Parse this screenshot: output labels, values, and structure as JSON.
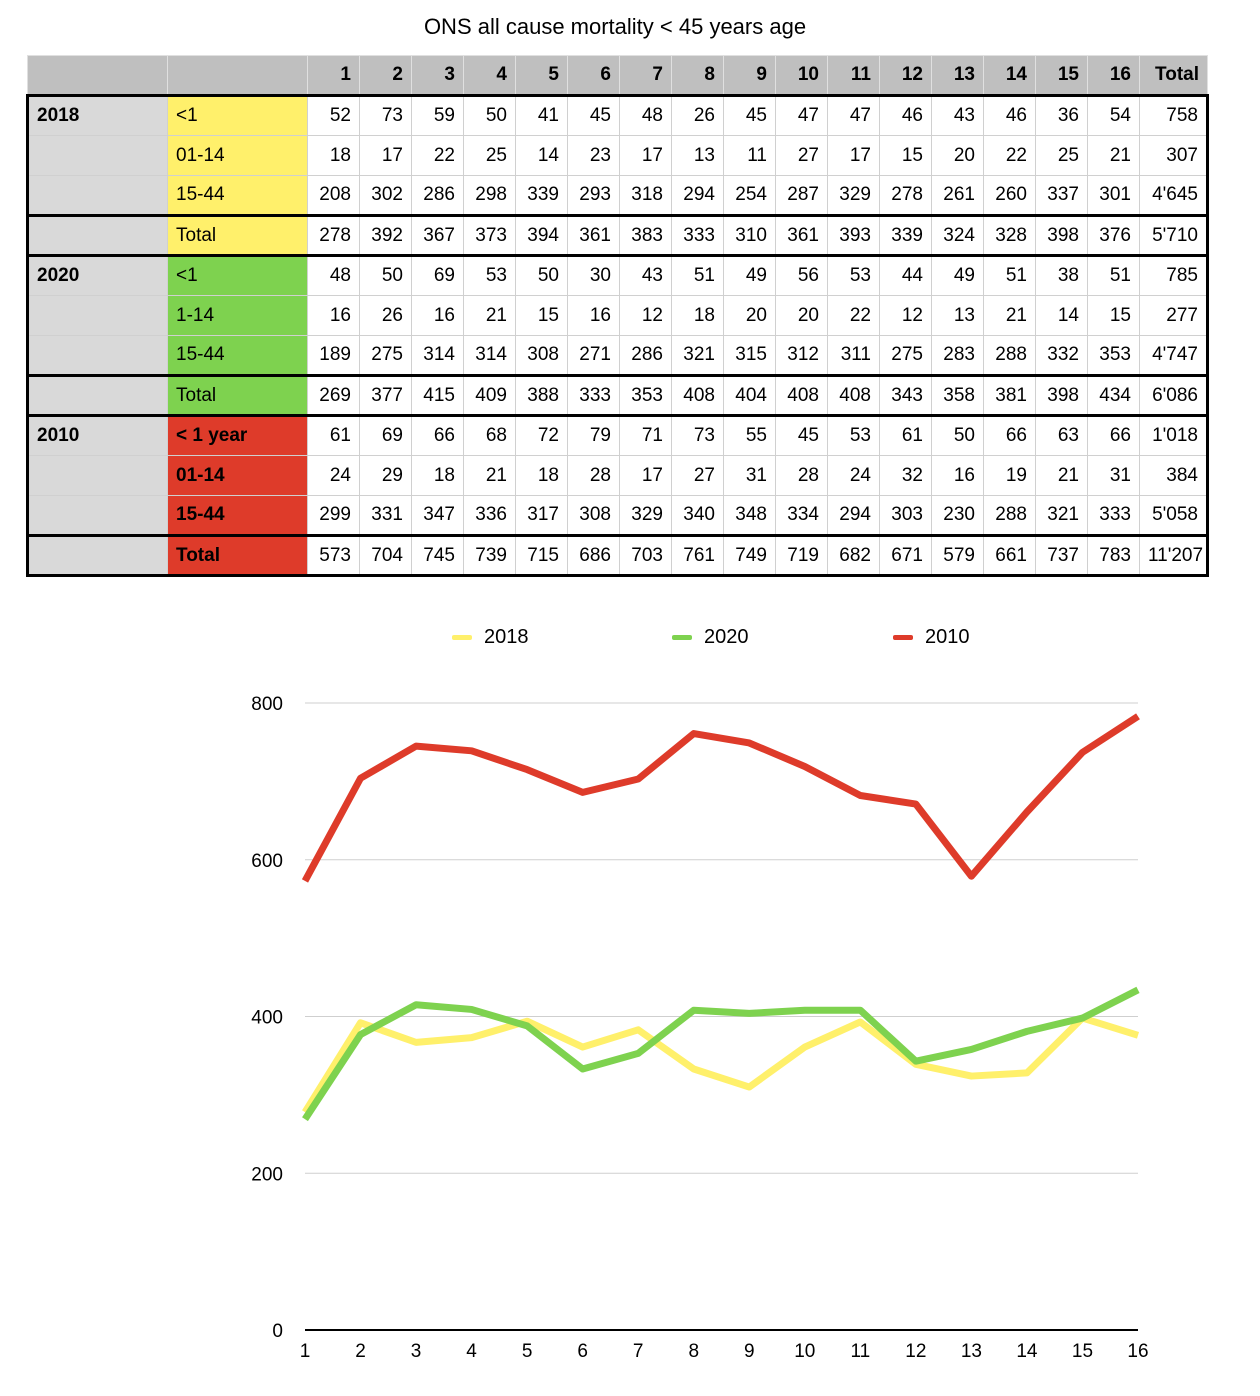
{
  "title": "ONS all cause mortality < 45 years age",
  "colors": {
    "y2018": "#fff06b",
    "y2020": "#7ed24f",
    "y2010": "#de3b2a"
  },
  "table": {
    "header": [
      "",
      "",
      "1",
      "2",
      "3",
      "4",
      "5",
      "6",
      "7",
      "8",
      "9",
      "10",
      "11",
      "12",
      "13",
      "14",
      "15",
      "16",
      "Total"
    ],
    "groups": [
      {
        "year": "2018",
        "color_key": "y18",
        "rows": [
          {
            "label": "<1",
            "values": [
              "52",
              "73",
              "59",
              "50",
              "41",
              "45",
              "48",
              "26",
              "45",
              "47",
              "47",
              "46",
              "43",
              "46",
              "36",
              "54",
              "758"
            ]
          },
          {
            "label": "01-14",
            "values": [
              "18",
              "17",
              "22",
              "25",
              "14",
              "23",
              "17",
              "13",
              "11",
              "27",
              "17",
              "15",
              "20",
              "22",
              "25",
              "21",
              "307"
            ]
          },
          {
            "label": "15-44",
            "values": [
              "208",
              "302",
              "286",
              "298",
              "339",
              "293",
              "318",
              "294",
              "254",
              "287",
              "329",
              "278",
              "261",
              "260",
              "337",
              "301",
              "4'645"
            ]
          }
        ],
        "total": {
          "label": "Total",
          "values": [
            "278",
            "392",
            "367",
            "373",
            "394",
            "361",
            "383",
            "333",
            "310",
            "361",
            "393",
            "339",
            "324",
            "328",
            "398",
            "376",
            "5'710"
          ]
        }
      },
      {
        "year": "2020",
        "color_key": "y20",
        "rows": [
          {
            "label": "<1",
            "values": [
              "48",
              "50",
              "69",
              "53",
              "50",
              "30",
              "43",
              "51",
              "49",
              "56",
              "53",
              "44",
              "49",
              "51",
              "38",
              "51",
              "785"
            ]
          },
          {
            "label": "1-14",
            "values": [
              "16",
              "26",
              "16",
              "21",
              "15",
              "16",
              "12",
              "18",
              "20",
              "20",
              "22",
              "12",
              "13",
              "21",
              "14",
              "15",
              "277"
            ]
          },
          {
            "label": "15-44",
            "values": [
              "189",
              "275",
              "314",
              "314",
              "308",
              "271",
              "286",
              "321",
              "315",
              "312",
              "311",
              "275",
              "283",
              "288",
              "332",
              "353",
              "4'747"
            ]
          }
        ],
        "total": {
          "label": "Total",
          "values": [
            "269",
            "377",
            "415",
            "409",
            "388",
            "333",
            "353",
            "408",
            "404",
            "408",
            "408",
            "343",
            "358",
            "381",
            "398",
            "434",
            "6'086"
          ]
        }
      },
      {
        "year": "2010",
        "color_key": "y10",
        "rows": [
          {
            "label": "< 1 year",
            "values": [
              "61",
              "69",
              "66",
              "68",
              "72",
              "79",
              "71",
              "73",
              "55",
              "45",
              "53",
              "61",
              "50",
              "66",
              "63",
              "66",
              "1'018"
            ]
          },
          {
            "label": "01-14",
            "values": [
              "24",
              "29",
              "18",
              "21",
              "18",
              "28",
              "17",
              "27",
              "31",
              "28",
              "24",
              "32",
              "16",
              "19",
              "21",
              "31",
              "384"
            ]
          },
          {
            "label": "15-44",
            "values": [
              "299",
              "331",
              "347",
              "336",
              "317",
              "308",
              "329",
              "340",
              "348",
              "334",
              "294",
              "303",
              "230",
              "288",
              "321",
              "333",
              "5'058"
            ]
          }
        ],
        "total": {
          "label": "Total",
          "values": [
            "573",
            "704",
            "745",
            "739",
            "715",
            "686",
            "703",
            "761",
            "749",
            "719",
            "682",
            "671",
            "579",
            "661",
            "737",
            "783",
            "11'207"
          ]
        }
      }
    ]
  },
  "chart_data": {
    "type": "line",
    "title": "",
    "xlabel": "",
    "ylabel": "",
    "x": [
      1,
      2,
      3,
      4,
      5,
      6,
      7,
      8,
      9,
      10,
      11,
      12,
      13,
      14,
      15,
      16
    ],
    "ylim": [
      0,
      800
    ],
    "yticks": [
      0,
      200,
      400,
      600,
      800
    ],
    "grid": true,
    "legend": "top",
    "series": [
      {
        "name": "2018",
        "color": "#fff06b",
        "values": [
          278,
          392,
          367,
          373,
          394,
          361,
          383,
          333,
          310,
          361,
          393,
          339,
          324,
          328,
          398,
          376
        ]
      },
      {
        "name": "2020",
        "color": "#7ed24f",
        "values": [
          269,
          377,
          415,
          409,
          388,
          333,
          353,
          408,
          404,
          408,
          408,
          343,
          358,
          381,
          398,
          434
        ]
      },
      {
        "name": "2010",
        "color": "#de3b2a",
        "values": [
          573,
          704,
          745,
          739,
          715,
          686,
          703,
          761,
          749,
          719,
          682,
          671,
          579,
          661,
          737,
          783
        ]
      }
    ]
  }
}
